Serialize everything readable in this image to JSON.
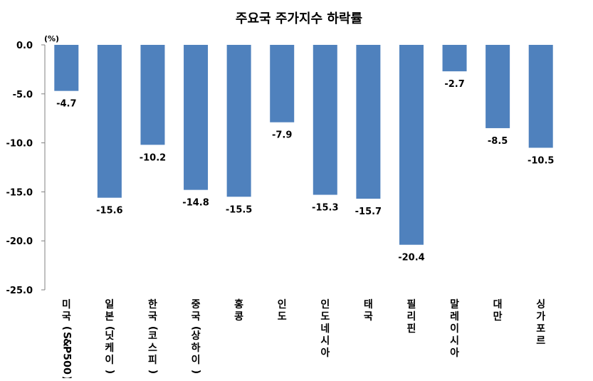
{
  "chart_data": {
    "type": "bar",
    "title": "주요국 주가지수 하락률",
    "unit": "(%)",
    "categories": [
      "미국(S&P500)",
      "일본(닛케이)",
      "한국(코스피)",
      "중국(상하이)",
      "홍콩",
      "인도",
      "인도네시아",
      "태국",
      "필리핀",
      "말레이시아",
      "대만",
      "싱가포르"
    ],
    "values": [
      -4.7,
      -15.6,
      -10.2,
      -14.8,
      -15.5,
      -7.9,
      -15.3,
      -15.7,
      -20.4,
      -2.7,
      -8.5,
      -10.5
    ],
    "ylim": [
      -25,
      0
    ],
    "yticks": [
      "0.0",
      "-5.0",
      "-10.0",
      "-15.0",
      "-20.0",
      "-25.0"
    ],
    "grid": false,
    "legend": "none",
    "colors": {
      "bar": "#4F81BD",
      "axis": "#808080"
    }
  }
}
